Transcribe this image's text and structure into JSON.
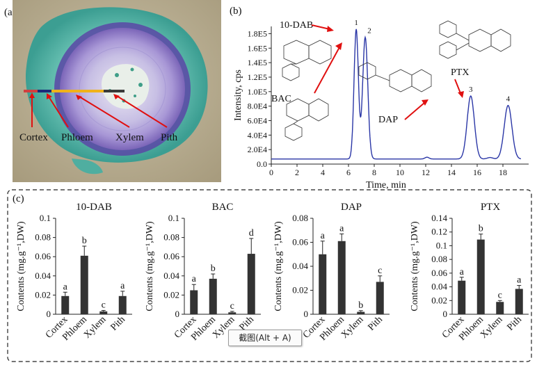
{
  "panel_a": {
    "label": "(a)",
    "regions": [
      "Cortex",
      "Phloem",
      "Xylem",
      "Pith"
    ]
  },
  "panel_b": {
    "label": "(b)",
    "peak_labels": [
      "10-DAB",
      "BAC",
      "DAP",
      "PTX"
    ],
    "peak_numbers": [
      "1",
      "2",
      "3",
      "4"
    ]
  },
  "panel_c": {
    "label": "(c)"
  },
  "tooltip": {
    "text": "截图(Alt + A)"
  },
  "colors": {
    "trace": "#2a36a6",
    "arrow": "#e01010",
    "bar": "#333333",
    "stain_green": "#4fb3a6",
    "stain_purple": "#8c78c8"
  },
  "chart_data": [
    {
      "type": "line",
      "title": "",
      "xlabel": "Time, min",
      "ylabel": "Intensity, cps",
      "xlim": [
        0,
        20
      ],
      "ylim": [
        0,
        190000.0
      ],
      "x_ticks": [
        0,
        2,
        4,
        6,
        8,
        10,
        12,
        14,
        16,
        18
      ],
      "y_ticks": [
        0,
        20000,
        40000,
        60000,
        80000,
        100000,
        120000,
        140000,
        160000,
        180000
      ],
      "y_tick_labels": [
        "0.0",
        "2.0E4",
        "4.0E4",
        "6.0E4",
        "8.0E4",
        "1.0E5",
        "1.2E5",
        "1.4E5",
        "1.6E5",
        "1.8E5"
      ],
      "baseline": 7000,
      "peaks": [
        {
          "number": "1",
          "compound": "10-DAB",
          "time": 6.6,
          "height": 186000
        },
        {
          "number": "2",
          "compound": "BAC",
          "time": 7.3,
          "height": 175000
        },
        {
          "number": "3",
          "compound": "DAP",
          "time": 15.5,
          "height": 94000
        },
        {
          "number": "4",
          "compound": "PTX",
          "time": 18.4,
          "height": 81000
        }
      ]
    },
    {
      "type": "bar",
      "title": "10-DAB",
      "ylabel": "Contents (mg.g⁻¹,DW)",
      "categories": [
        "Cortex",
        "Phloem",
        "Xylem",
        "Pith"
      ],
      "values": [
        0.019,
        0.061,
        0.003,
        0.019
      ],
      "errors": [
        0.004,
        0.01,
        0.001,
        0.005
      ],
      "letters": [
        "a",
        "b",
        "c",
        "a"
      ],
      "ylim": [
        0,
        0.1
      ],
      "y_ticks": [
        0,
        0.02,
        0.04,
        0.06,
        0.08,
        0.1
      ],
      "y_tick_labels": [
        "0",
        "0.02",
        "0.04",
        "0.06",
        "0.08",
        "0.1"
      ]
    },
    {
      "type": "bar",
      "title": "BAC",
      "ylabel": "Contents (mg.g⁻¹,DW)",
      "categories": [
        "Cortex",
        "Phloem",
        "Xylem",
        "Pith"
      ],
      "values": [
        0.025,
        0.037,
        0.002,
        0.063
      ],
      "errors": [
        0.006,
        0.005,
        0.001,
        0.016
      ],
      "letters": [
        "a",
        "b",
        "c",
        "d"
      ],
      "ylim": [
        0,
        0.1
      ],
      "y_ticks": [
        0,
        0.02,
        0.04,
        0.06,
        0.08,
        0.1
      ],
      "y_tick_labels": [
        "0",
        "0.02",
        "0.04",
        "0.06",
        "0.08",
        "0.1"
      ]
    },
    {
      "type": "bar",
      "title": "DAP",
      "ylabel": "Contents (mg.g⁻¹,DW)",
      "categories": [
        "Cortex",
        "Phloem",
        "Xylem",
        "Pith"
      ],
      "values": [
        0.05,
        0.061,
        0.002,
        0.027
      ],
      "errors": [
        0.011,
        0.006,
        0.001,
        0.005
      ],
      "letters": [
        "a",
        "a",
        "b",
        "c"
      ],
      "ylim": [
        0,
        0.08
      ],
      "y_ticks": [
        0,
        0.02,
        0.04,
        0.06,
        0.08
      ],
      "y_tick_labels": [
        "0",
        "0.02",
        "0.04",
        "0.06",
        "0.08"
      ]
    },
    {
      "type": "bar",
      "title": "PTX",
      "ylabel": "Contents (mg.g⁻¹,DW)",
      "categories": [
        "Cortex",
        "Phloem",
        "Xylem",
        "Pith"
      ],
      "values": [
        0.049,
        0.109,
        0.018,
        0.037
      ],
      "errors": [
        0.005,
        0.008,
        0.002,
        0.005
      ],
      "letters": [
        "a",
        "b",
        "c",
        "a"
      ],
      "ylim": [
        0,
        0.14
      ],
      "y_ticks": [
        0,
        0.02,
        0.04,
        0.06,
        0.08,
        0.1,
        0.12,
        0.14
      ],
      "y_tick_labels": [
        "0",
        "0.02",
        "0.04",
        "0.06",
        "0.08",
        "0.1",
        "0.12",
        "0.14"
      ]
    }
  ]
}
